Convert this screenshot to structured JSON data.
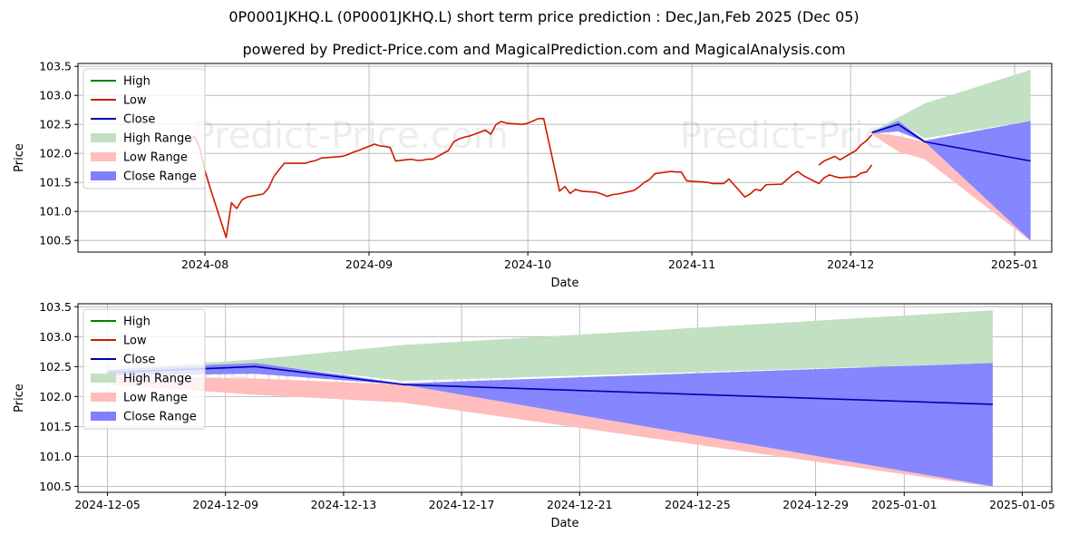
{
  "page": {
    "title": "0P0001JKHQ.L (0P0001JKHQ.L) short term price prediction : Dec,Jan,Feb 2025 (Dec 05)",
    "subtitle": "powered by Predict-Price.com and MagicalPrediction.com and MagicalAnalysis.com",
    "watermark": "Predict-Price.com"
  },
  "colors": {
    "high": "#008000",
    "low": "#cc1a00",
    "close": "#0000b3",
    "high_range": "#c2e0c2",
    "low_range": "#ffbdbd",
    "close_range": "#8080ff"
  },
  "legend": {
    "placement": "top-left",
    "items": [
      "High",
      "Low",
      "Close",
      "High Range",
      "Low Range",
      "Close Range"
    ]
  },
  "chart_data": [
    {
      "id": "history",
      "type": "line",
      "xlabel": "Date",
      "ylabel": "Price",
      "xlim": [
        "2024-07-08",
        "2025-01-08"
      ],
      "ylim": [
        100.3,
        103.55
      ],
      "grid": true,
      "x_ticks": [
        "2024-08-01",
        "2024-09-01",
        "2024-10-01",
        "2024-11-01",
        "2024-12-01",
        "2025-01-01"
      ],
      "x_tick_labels": [
        "2024-08",
        "2024-09",
        "2024-10",
        "2024-11",
        "2024-12",
        "2025-01"
      ],
      "y_ticks": [
        100.5,
        101.0,
        101.5,
        102.0,
        102.5,
        103.0,
        103.5
      ],
      "y_tick_labels": [
        "100.5",
        "101.0",
        "101.5",
        "102.0",
        "102.5",
        "103.0",
        "103.5"
      ],
      "series": [
        {
          "name": "Low",
          "x": [
            "2024-07-29",
            "2024-07-30",
            "2024-07-31",
            "2024-08-01",
            "2024-08-02",
            "2024-08-05",
            "2024-08-06",
            "2024-08-07",
            "2024-08-08",
            "2024-08-09",
            "2024-08-12",
            "2024-08-13",
            "2024-08-14",
            "2024-08-15",
            "2024-08-16",
            "2024-08-19",
            "2024-08-20",
            "2024-08-21",
            "2024-08-22",
            "2024-08-23",
            "2024-08-27",
            "2024-08-28",
            "2024-08-29",
            "2024-08-30",
            "2024-09-02",
            "2024-09-03",
            "2024-09-04",
            "2024-09-05",
            "2024-09-06",
            "2024-09-09",
            "2024-09-10",
            "2024-09-11",
            "2024-09-12",
            "2024-09-13",
            "2024-09-16",
            "2024-09-17",
            "2024-09-18",
            "2024-09-19",
            "2024-09-20",
            "2024-09-23",
            "2024-09-24",
            "2024-09-25",
            "2024-09-26",
            "2024-09-27",
            "2024-09-30",
            "2024-10-01",
            "2024-10-02",
            "2024-10-03",
            "2024-10-04",
            "2024-10-07",
            "2024-10-08",
            "2024-10-09",
            "2024-10-10",
            "2024-10-11",
            "2024-10-14",
            "2024-10-15",
            "2024-10-16",
            "2024-10-17",
            "2024-10-18",
            "2024-10-21",
            "2024-10-22",
            "2024-10-23",
            "2024-10-24",
            "2024-10-25",
            "2024-10-28",
            "2024-10-29",
            "2024-10-30",
            "2024-10-31",
            "2024-11-01",
            "2024-11-04",
            "2024-11-05",
            "2024-11-06",
            "2024-11-07",
            "2024-11-08",
            "2024-11-11",
            "2024-11-12",
            "2024-11-13",
            "2024-11-14",
            "2024-11-15",
            "2024-11-18",
            "2024-11-19",
            "2024-11-20",
            "2024-11-21",
            "2024-11-22",
            "2024-11-25",
            "2024-11-26",
            "2024-11-27",
            "2024-11-28",
            "2024-11-29",
            "2024-12-02",
            "2024-12-03",
            "2024-12-04",
            "2024-12-05"
          ],
          "values": [
            102.2,
            102.3,
            102.1,
            101.7,
            101.4,
            100.55,
            101.15,
            101.05,
            101.2,
            101.25,
            101.3,
            101.4,
            101.6,
            101.72,
            101.83,
            101.83,
            101.83,
            101.86,
            101.88,
            101.92,
            101.95,
            101.98,
            102.02,
            102.05,
            102.16,
            102.13,
            102.12,
            102.1,
            101.87,
            101.9,
            101.88,
            101.88,
            101.9,
            101.9,
            102.05,
            102.2,
            102.25,
            102.28,
            102.3,
            102.4,
            102.33,
            102.5,
            102.55,
            102.52,
            102.5,
            102.52,
            102.56,
            102.6,
            102.6,
            101.35,
            101.43,
            101.31,
            101.38,
            101.35,
            101.33,
            101.3,
            101.26,
            101.29,
            101.3,
            101.36,
            101.42,
            101.5,
            101.55,
            101.65,
            101.69,
            101.68,
            101.68,
            101.53,
            101.52,
            101.5,
            101.48,
            101.48,
            101.48,
            101.56,
            101.25,
            101.3,
            101.38,
            101.36,
            101.46,
            101.47,
            101.55,
            101.63,
            101.69,
            101.62,
            101.48,
            101.58,
            101.63,
            101.6,
            101.58,
            101.6,
            101.66,
            101.68,
            101.8
          ]
        },
        {
          "name": "Low",
          "x": [
            "2024-11-25",
            "2024-11-26",
            "2024-11-27",
            "2024-11-28",
            "2024-11-29",
            "2024-12-02",
            "2024-12-03",
            "2024-12-04",
            "2024-12-05"
          ],
          "values": [
            101.8,
            101.87,
            101.91,
            101.95,
            101.89,
            102.05,
            102.15,
            102.22,
            102.32
          ]
        },
        {
          "name": "Close",
          "x": [
            "2024-12-05",
            "2024-12-10",
            "2024-12-15",
            "2025-01-04"
          ],
          "values": [
            102.36,
            102.5,
            102.2,
            101.87
          ]
        }
      ],
      "ranges": [
        {
          "name": "High Range",
          "x": [
            "2024-12-05",
            "2024-12-10",
            "2024-12-15",
            "2025-01-04"
          ],
          "lower": [
            102.36,
            102.55,
            102.26,
            102.56
          ],
          "upper": [
            102.38,
            102.62,
            102.86,
            103.44
          ]
        },
        {
          "name": "Low Range",
          "x": [
            "2024-12-05",
            "2024-12-10",
            "2024-12-15",
            "2025-01-04"
          ],
          "lower": [
            102.33,
            102.03,
            101.9,
            100.49
          ],
          "upper": [
            102.36,
            102.3,
            102.2,
            100.5
          ]
        },
        {
          "name": "Close Range",
          "x": [
            "2024-12-05",
            "2024-12-10",
            "2024-12-15",
            "2025-01-04"
          ],
          "lower": [
            102.34,
            102.38,
            102.2,
            100.5
          ],
          "upper": [
            102.36,
            102.56,
            102.22,
            102.56
          ]
        }
      ]
    },
    {
      "id": "forecast",
      "type": "line",
      "xlabel": "Date",
      "ylabel": "Price",
      "xlim": [
        "2024-12-04",
        "2025-01-06"
      ],
      "ylim": [
        100.4,
        103.55
      ],
      "grid": true,
      "x_ticks": [
        "2024-12-05",
        "2024-12-09",
        "2024-12-13",
        "2024-12-17",
        "2024-12-21",
        "2024-12-25",
        "2024-12-29",
        "2025-01-01",
        "2025-01-05"
      ],
      "x_tick_labels": [
        "2024-12-05",
        "2024-12-09",
        "2024-12-13",
        "2024-12-17",
        "2024-12-21",
        "2024-12-25",
        "2024-12-29",
        "2025-01-01",
        "2025-01-05"
      ],
      "y_ticks": [
        100.5,
        101.0,
        101.5,
        102.0,
        102.5,
        103.0,
        103.5
      ],
      "y_tick_labels": [
        "100.5",
        "101.0",
        "101.5",
        "102.0",
        "102.5",
        "103.0",
        "103.5"
      ],
      "series": [
        {
          "name": "Close",
          "x": [
            "2024-12-05",
            "2024-12-10",
            "2024-12-15",
            "2025-01-04"
          ],
          "values": [
            102.4,
            102.5,
            102.2,
            101.87
          ]
        }
      ],
      "ranges": [
        {
          "name": "High Range",
          "x": [
            "2024-12-05",
            "2024-12-10",
            "2024-12-15",
            "2025-01-04"
          ],
          "lower": [
            102.4,
            102.55,
            102.26,
            102.56
          ],
          "upper": [
            102.45,
            102.62,
            102.86,
            103.44
          ]
        },
        {
          "name": "Low Range",
          "x": [
            "2024-12-05",
            "2024-12-10",
            "2024-12-15",
            "2025-01-04"
          ],
          "lower": [
            102.2,
            102.03,
            101.9,
            100.49
          ],
          "upper": [
            102.35,
            102.3,
            102.2,
            100.5
          ]
        },
        {
          "name": "Close Range",
          "x": [
            "2024-12-05",
            "2024-12-10",
            "2024-12-15",
            "2025-01-04"
          ],
          "lower": [
            102.35,
            102.38,
            102.2,
            100.5
          ],
          "upper": [
            102.45,
            102.56,
            102.22,
            102.56
          ]
        }
      ]
    }
  ]
}
